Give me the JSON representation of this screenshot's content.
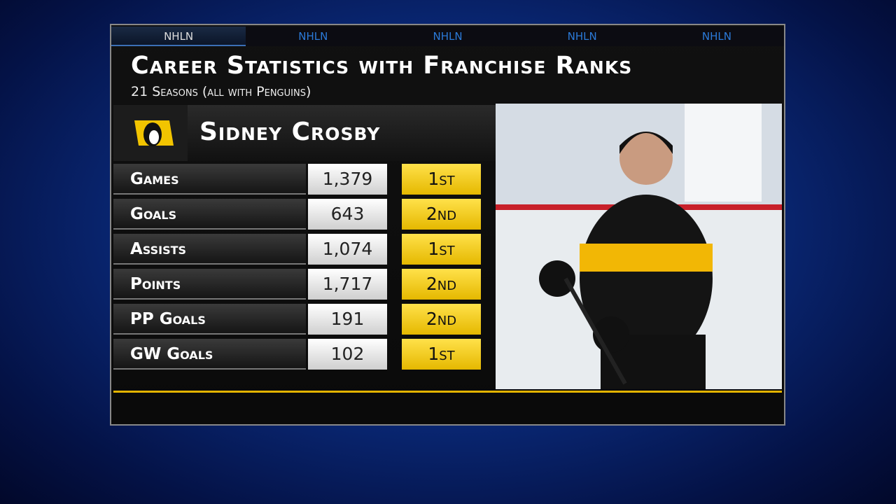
{
  "tabs": [
    "NHLN",
    "NHLN",
    "NHLN",
    "NHLN",
    "NHLN"
  ],
  "header": {
    "title": "Career Statistics with Franchise Ranks",
    "subtitle": "21 Seasons (all with Penguins)"
  },
  "player": {
    "name": "Sidney Crosby"
  },
  "table": {
    "rows": [
      [
        "Games",
        "1,379",
        "1st"
      ],
      [
        "Goals",
        "643",
        "2nd"
      ],
      [
        "Assists",
        "1,074",
        "1st"
      ],
      [
        "Points",
        "1,717",
        "2nd"
      ],
      [
        "PP Goals",
        "191",
        "2nd"
      ],
      [
        "GW Goals",
        "102",
        "1st"
      ]
    ]
  }
}
